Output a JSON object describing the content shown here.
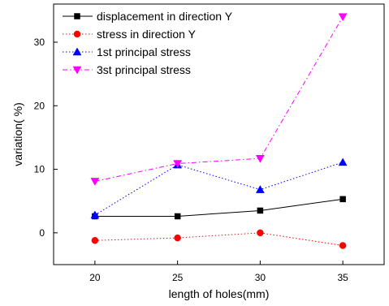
{
  "chart_data": {
    "type": "line",
    "xlabel": "length of holes(mm)",
    "ylabel": "variation(  %)",
    "x": [
      20,
      25,
      30,
      35
    ],
    "xticks": [
      "20",
      "25",
      "30",
      "35"
    ],
    "xlim": [
      17.5,
      37.5
    ],
    "yticks": [
      0,
      10,
      20,
      30
    ],
    "ylim": [
      -5,
      36
    ],
    "grid": false,
    "legend": "top-left",
    "series": [
      {
        "name": "displacement in direction Y",
        "values": [
          2.6,
          2.6,
          3.5,
          5.3
        ],
        "color": "#000000",
        "marker": "square",
        "line": "solid"
      },
      {
        "name": "stress in direction Y",
        "values": [
          -1.2,
          -0.8,
          0.0,
          -2.0
        ],
        "color": "#ff0000",
        "marker": "circle",
        "line": "dotted"
      },
      {
        "name": "1st principal stress",
        "values": [
          2.8,
          10.7,
          6.8,
          11.1
        ],
        "color": "#0000ff",
        "marker": "triangle-up",
        "line": "dotted"
      },
      {
        "name": "3st principal stress",
        "values": [
          8.1,
          10.9,
          11.7,
          34.0
        ],
        "color": "#ff00ff",
        "marker": "triangle-down",
        "line": "dashdot"
      }
    ]
  }
}
